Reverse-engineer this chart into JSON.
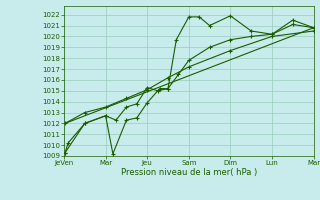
{
  "bg_color": "#c8ecec",
  "grid_color": "#99ccbb",
  "line_color": "#1a5c00",
  "xlabel": "Pression niveau de la mer( hPa )",
  "ylim": [
    1009,
    1022.8
  ],
  "yticks": [
    1009,
    1010,
    1011,
    1012,
    1013,
    1014,
    1015,
    1016,
    1017,
    1018,
    1019,
    1020,
    1021,
    1022
  ],
  "xtick_labels": [
    "JeVen",
    "Mar",
    "Jeu",
    "Sam",
    "Dim",
    "Lun",
    "Mar"
  ],
  "xtick_positions": [
    0,
    2,
    4,
    6,
    8,
    10,
    12
  ],
  "series1_x": [
    0.05,
    0.2,
    1.0,
    2.0,
    2.35,
    3.0,
    3.5,
    4.0,
    4.6,
    5.0,
    5.4,
    6.0,
    6.5,
    7.0,
    8.0,
    9.0,
    10.0,
    11.0,
    12.0
  ],
  "series1_y": [
    1009.3,
    1010.2,
    1012.0,
    1012.7,
    1009.2,
    1012.3,
    1012.5,
    1013.9,
    1015.2,
    1015.2,
    1019.7,
    1021.8,
    1021.8,
    1021.0,
    1021.9,
    1020.5,
    1020.2,
    1021.5,
    1020.8
  ],
  "series2_x": [
    0.05,
    1.0,
    2.0,
    2.5,
    3.0,
    3.5,
    4.0,
    4.5,
    5.0,
    5.5,
    6.0,
    7.0,
    8.0,
    9.0,
    10.0,
    11.0,
    12.0
  ],
  "series2_y": [
    1009.3,
    1012.0,
    1012.7,
    1012.3,
    1013.5,
    1013.8,
    1015.3,
    1015.0,
    1015.2,
    1016.5,
    1017.8,
    1019.0,
    1019.7,
    1020.0,
    1020.2,
    1021.1,
    1020.8
  ],
  "series3_x": [
    0.05,
    1.0,
    2.0,
    3.0,
    4.0,
    5.0,
    6.0,
    8.0,
    10.0,
    12.0
  ],
  "series3_y": [
    1012.0,
    1013.0,
    1013.5,
    1014.3,
    1015.1,
    1016.2,
    1017.2,
    1018.7,
    1020.0,
    1020.5
  ],
  "series4_x": [
    0.05,
    12.0
  ],
  "series4_y": [
    1012.0,
    1020.8
  ]
}
